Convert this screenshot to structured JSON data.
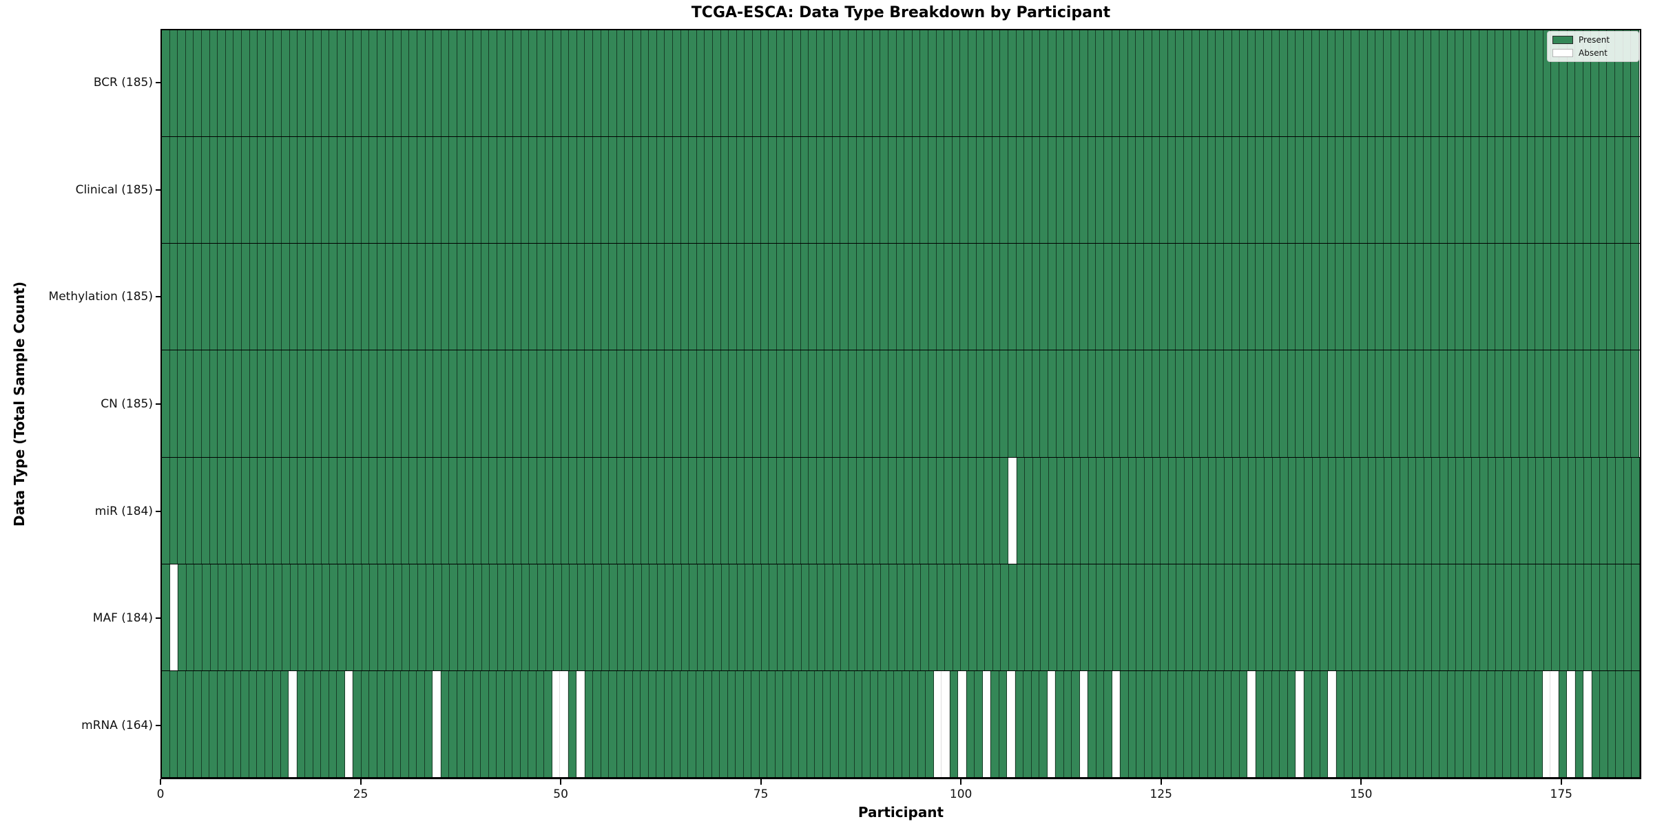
{
  "chart_data": {
    "type": "heatmap",
    "title": "TCGA-ESCA: Data Type Breakdown by Participant",
    "xlabel": "Participant",
    "ylabel": "Data Type (Total Sample Count)",
    "n_participants": 185,
    "x_range": [
      0,
      185
    ],
    "x_ticks": [
      0,
      25,
      50,
      75,
      100,
      125,
      150,
      175
    ],
    "grid": false,
    "legend_position": "upper right",
    "legend": {
      "present_label": "Present",
      "absent_label": "Absent"
    },
    "colors": {
      "present": "#348757",
      "absent": "#ffffff",
      "cell_edge": "rgba(0,0,0,0.55)"
    },
    "rows": [
      {
        "label": "BCR (185)",
        "name": "BCR",
        "total": 185,
        "absent_participants": []
      },
      {
        "label": "Clinical (185)",
        "name": "Clinical",
        "total": 185,
        "absent_participants": []
      },
      {
        "label": "Methylation (185)",
        "name": "Methylation",
        "total": 185,
        "absent_participants": []
      },
      {
        "label": "CN (185)",
        "name": "CN",
        "total": 185,
        "absent_participants": []
      },
      {
        "label": "miR (184)",
        "name": "miR",
        "total": 184,
        "absent_participants": [
          106
        ]
      },
      {
        "label": "MAF (184)",
        "name": "MAF",
        "total": 184,
        "absent_participants": [
          1
        ]
      },
      {
        "label": "mRNA (164)",
        "name": "mRNA",
        "total": 164,
        "absent_participants": [
          16,
          23,
          34,
          49,
          50,
          52,
          97,
          98,
          100,
          103,
          106,
          111,
          115,
          119,
          136,
          142,
          146,
          173,
          174,
          176,
          178
        ]
      }
    ]
  }
}
